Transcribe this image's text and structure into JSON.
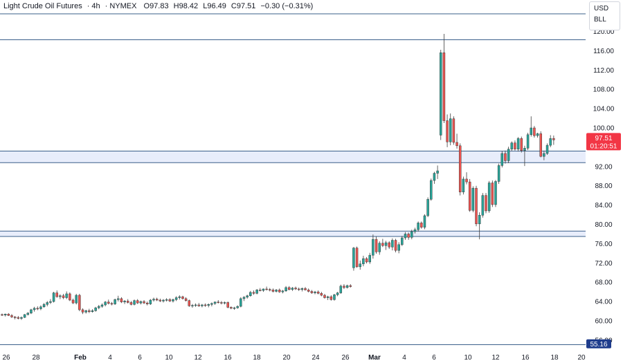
{
  "header": {
    "title": "Light Crude Oil Futures",
    "interval": "4h",
    "exchange": "NYMEX",
    "open_label": "O",
    "open": "97.83",
    "high_label": "H",
    "high": "98.42",
    "low_label": "L",
    "low": "96.49",
    "close_label": "C",
    "close": "97.51",
    "change": "−0.30 (−0.31%)"
  },
  "units": {
    "currency": "USD",
    "unit": "BLL"
  },
  "price_tags": {
    "last_price": "97.51",
    "countdown": "01:20:51",
    "line_price": "55.16"
  },
  "colors": {
    "up": "#26a69a",
    "down": "#ef5350",
    "zone_fill": "#e8edfb",
    "zone_line": "#3a5f8a",
    "last_price": "#f23645",
    "line_tag": "#1e3c8c"
  },
  "chart_data": {
    "type": "candlestick",
    "y_ticks": [
      "120.00",
      "116.00",
      "112.00",
      "108.00",
      "104.00",
      "100.00",
      "96.00",
      "92.00",
      "88.00",
      "84.00",
      "80.00",
      "76.00",
      "72.00",
      "68.00",
      "64.00",
      "60.00",
      "56.00"
    ],
    "x_ticks": [
      {
        "label": "26",
        "bold": false
      },
      {
        "label": "28",
        "bold": false
      },
      {
        "label": "Feb",
        "bold": true
      },
      {
        "label": "4",
        "bold": false
      },
      {
        "label": "6",
        "bold": false
      },
      {
        "label": "10",
        "bold": false
      },
      {
        "label": "12",
        "bold": false
      },
      {
        "label": "16",
        "bold": false
      },
      {
        "label": "18",
        "bold": false
      },
      {
        "label": "20",
        "bold": false
      },
      {
        "label": "24",
        "bold": false
      },
      {
        "label": "26",
        "bold": false
      },
      {
        "label": "Mar",
        "bold": true
      },
      {
        "label": "4",
        "bold": false
      },
      {
        "label": "6",
        "bold": false
      },
      {
        "label": "10",
        "bold": false
      },
      {
        "label": "12",
        "bold": false
      },
      {
        "label": "16",
        "bold": false
      },
      {
        "label": "18",
        "bold": false
      },
      {
        "label": "20",
        "bold": false
      }
    ],
    "ylim": [
      55,
      121
    ],
    "zones": [
      [
        92.8,
        95.2
      ],
      [
        77.5,
        78.6
      ]
    ],
    "horizontal_lines": [
      55.16,
      118.3
    ],
    "last_price": 97.51,
    "candles": [
      [
        61.3,
        61.5,
        61.0,
        61.2
      ],
      [
        61.2,
        61.5,
        60.9,
        61.4
      ],
      [
        61.4,
        61.6,
        61.0,
        61.1
      ],
      [
        61.1,
        61.4,
        60.6,
        60.8
      ],
      [
        60.8,
        61.0,
        60.3,
        60.7
      ],
      [
        60.7,
        61.0,
        60.3,
        60.5
      ],
      [
        60.5,
        60.9,
        60.2,
        60.7
      ],
      [
        60.7,
        61.4,
        60.6,
        61.3
      ],
      [
        61.3,
        61.8,
        61.1,
        61.6
      ],
      [
        61.6,
        62.5,
        61.4,
        62.3
      ],
      [
        62.3,
        62.9,
        61.9,
        62.6
      ],
      [
        62.6,
        63.0,
        62.2,
        62.5
      ],
      [
        62.5,
        63.2,
        62.2,
        62.9
      ],
      [
        62.9,
        63.7,
        62.7,
        63.4
      ],
      [
        63.4,
        64.1,
        63.0,
        63.8
      ],
      [
        63.8,
        64.5,
        63.5,
        64.0
      ],
      [
        64.0,
        66.0,
        63.8,
        65.8
      ],
      [
        65.8,
        66.3,
        64.8,
        65.0
      ],
      [
        65.0,
        65.5,
        64.5,
        65.2
      ],
      [
        65.2,
        65.6,
        64.5,
        64.8
      ],
      [
        64.8,
        66.1,
        64.5,
        65.6
      ],
      [
        65.6,
        65.9,
        64.1,
        64.3
      ],
      [
        64.3,
        64.6,
        63.5,
        63.7
      ],
      [
        63.7,
        65.6,
        63.4,
        65.3
      ],
      [
        65.3,
        65.6,
        62.0,
        62.3
      ],
      [
        62.3,
        62.6,
        61.4,
        61.8
      ],
      [
        61.8,
        62.3,
        61.5,
        62.1
      ],
      [
        62.1,
        62.5,
        61.6,
        61.9
      ],
      [
        61.9,
        62.4,
        61.7,
        62.1
      ],
      [
        62.1,
        62.9,
        61.9,
        62.7
      ],
      [
        62.7,
        63.3,
        62.4,
        63.0
      ],
      [
        63.0,
        63.6,
        62.7,
        63.3
      ],
      [
        63.3,
        64.1,
        63.0,
        63.9
      ],
      [
        63.9,
        64.4,
        63.4,
        63.6
      ],
      [
        63.6,
        63.9,
        63.2,
        63.5
      ],
      [
        63.5,
        64.6,
        63.3,
        64.4
      ],
      [
        64.4,
        65.2,
        64.0,
        64.6
      ],
      [
        64.6,
        64.9,
        63.7,
        63.9
      ],
      [
        63.9,
        64.3,
        63.5,
        64.1
      ],
      [
        64.1,
        64.5,
        63.6,
        63.8
      ],
      [
        63.8,
        64.1,
        63.2,
        63.4
      ],
      [
        63.4,
        64.4,
        63.2,
        64.2
      ],
      [
        64.2,
        64.5,
        63.5,
        63.7
      ],
      [
        63.7,
        64.2,
        63.4,
        64.0
      ],
      [
        64.0,
        64.3,
        63.5,
        63.7
      ],
      [
        63.7,
        64.0,
        63.2,
        63.5
      ],
      [
        63.5,
        64.5,
        63.3,
        64.3
      ],
      [
        64.3,
        64.8,
        64.0,
        64.5
      ],
      [
        64.5,
        64.8,
        64.1,
        64.3
      ],
      [
        64.3,
        64.6,
        63.9,
        64.1
      ],
      [
        64.1,
        64.5,
        63.8,
        64.3
      ],
      [
        64.3,
        64.7,
        64.0,
        64.4
      ],
      [
        64.4,
        64.7,
        63.9,
        64.1
      ],
      [
        64.1,
        64.6,
        63.8,
        64.4
      ],
      [
        64.4,
        65.1,
        64.1,
        64.8
      ],
      [
        64.8,
        65.3,
        64.4,
        65.0
      ],
      [
        65.0,
        65.2,
        64.4,
        64.6
      ],
      [
        64.6,
        64.9,
        64.0,
        64.2
      ],
      [
        64.2,
        64.4,
        62.9,
        63.1
      ],
      [
        63.1,
        63.5,
        62.7,
        63.2
      ],
      [
        63.2,
        63.6,
        62.9,
        63.3
      ],
      [
        63.3,
        63.7,
        62.9,
        63.1
      ],
      [
        63.1,
        63.5,
        62.8,
        63.3
      ],
      [
        63.3,
        63.6,
        62.9,
        63.2
      ],
      [
        63.2,
        63.6,
        62.8,
        63.4
      ],
      [
        63.4,
        63.8,
        63.0,
        63.6
      ],
      [
        63.6,
        64.0,
        63.3,
        63.9
      ],
      [
        63.9,
        64.3,
        63.6,
        63.8
      ],
      [
        63.8,
        64.1,
        63.4,
        63.7
      ],
      [
        63.7,
        64.0,
        63.4,
        63.8
      ],
      [
        63.8,
        64.0,
        62.6,
        62.8
      ],
      [
        62.8,
        63.0,
        62.4,
        62.6
      ],
      [
        62.6,
        62.9,
        62.3,
        62.7
      ],
      [
        62.7,
        63.2,
        62.5,
        63.0
      ],
      [
        63.0,
        64.9,
        62.8,
        64.6
      ],
      [
        64.6,
        65.1,
        64.1,
        64.9
      ],
      [
        64.9,
        65.4,
        64.6,
        65.2
      ],
      [
        65.2,
        66.2,
        65.0,
        65.9
      ],
      [
        65.9,
        66.3,
        65.4,
        65.7
      ],
      [
        65.7,
        66.6,
        65.5,
        66.4
      ],
      [
        66.4,
        66.8,
        66.1,
        66.3
      ],
      [
        66.3,
        66.7,
        66.0,
        66.6
      ],
      [
        66.6,
        67.1,
        66.3,
        66.5
      ],
      [
        66.5,
        66.8,
        66.1,
        66.4
      ],
      [
        66.4,
        66.7,
        65.9,
        66.1
      ],
      [
        66.1,
        66.6,
        65.9,
        66.4
      ],
      [
        66.4,
        66.7,
        65.8,
        66.0
      ],
      [
        66.0,
        66.4,
        65.7,
        66.2
      ],
      [
        66.2,
        67.2,
        66.0,
        66.9
      ],
      [
        66.9,
        67.2,
        66.3,
        66.5
      ],
      [
        66.5,
        67.0,
        66.2,
        66.8
      ],
      [
        66.8,
        67.1,
        66.4,
        66.6
      ],
      [
        66.6,
        66.9,
        66.2,
        66.5
      ],
      [
        66.5,
        66.9,
        66.1,
        66.7
      ],
      [
        66.7,
        67.0,
        66.3,
        66.4
      ],
      [
        66.4,
        66.7,
        65.9,
        66.1
      ],
      [
        66.1,
        66.4,
        65.6,
        65.8
      ],
      [
        65.8,
        66.2,
        65.5,
        66.0
      ],
      [
        66.0,
        66.3,
        65.5,
        65.7
      ],
      [
        65.7,
        66.0,
        65.1,
        65.3
      ],
      [
        65.3,
        65.6,
        64.6,
        64.8
      ],
      [
        64.8,
        65.2,
        64.3,
        65.0
      ],
      [
        65.0,
        65.3,
        64.2,
        64.4
      ],
      [
        64.4,
        65.6,
        64.2,
        65.4
      ],
      [
        65.4,
        66.0,
        65.1,
        65.8
      ],
      [
        65.8,
        67.5,
        65.6,
        67.2
      ],
      [
        67.2,
        67.6,
        66.6,
        66.9
      ],
      [
        66.9,
        67.5,
        66.7,
        67.3
      ],
      [
        67.3,
        67.6,
        66.9,
        67.1
      ],
      [
        71.0,
        75.3,
        70.4,
        75.1
      ],
      [
        75.1,
        75.4,
        71.0,
        71.2
      ],
      [
        71.2,
        72.5,
        70.6,
        71.8
      ],
      [
        71.8,
        73.5,
        71.3,
        72.9
      ],
      [
        72.9,
        73.2,
        71.9,
        72.2
      ],
      [
        72.2,
        74.1,
        71.8,
        73.6
      ],
      [
        73.6,
        77.9,
        72.9,
        76.9
      ],
      [
        76.9,
        77.5,
        73.9,
        74.3
      ],
      [
        74.3,
        76.5,
        73.7,
        76.1
      ],
      [
        76.1,
        77.0,
        75.3,
        75.6
      ],
      [
        75.6,
        76.6,
        74.7,
        76.2
      ],
      [
        76.2,
        76.5,
        74.9,
        75.3
      ],
      [
        75.3,
        77.1,
        74.6,
        76.7
      ],
      [
        76.7,
        77.0,
        74.2,
        74.6
      ],
      [
        74.6,
        76.3,
        74.0,
        75.8
      ],
      [
        75.8,
        77.6,
        75.5,
        77.2
      ],
      [
        77.2,
        78.4,
        76.8,
        78.0
      ],
      [
        78.0,
        78.3,
        76.8,
        77.3
      ],
      [
        77.3,
        78.9,
        76.9,
        78.5
      ],
      [
        78.5,
        79.3,
        78.1,
        78.9
      ],
      [
        78.9,
        80.6,
        78.5,
        80.3
      ],
      [
        80.3,
        80.6,
        79.1,
        79.4
      ],
      [
        79.4,
        82.1,
        79.0,
        81.8
      ],
      [
        81.8,
        85.6,
        81.5,
        85.2
      ],
      [
        85.2,
        89.5,
        84.9,
        89.1
      ],
      [
        89.1,
        90.9,
        88.4,
        90.6
      ],
      [
        90.6,
        92.2,
        89.4,
        91.1
      ],
      [
        98.5,
        116.2,
        97.5,
        115.6
      ],
      [
        115.6,
        119.5,
        101.0,
        101.5
      ],
      [
        101.5,
        102.8,
        96.0,
        97.1
      ],
      [
        97.1,
        103.0,
        96.4,
        101.9
      ],
      [
        101.9,
        102.4,
        96.5,
        97.0
      ],
      [
        97.0,
        98.8,
        95.7,
        96.3
      ],
      [
        96.3,
        96.8,
        86.0,
        86.7
      ],
      [
        86.7,
        89.9,
        86.2,
        89.4
      ],
      [
        89.4,
        90.8,
        88.3,
        88.8
      ],
      [
        88.8,
        89.4,
        82.6,
        82.9
      ],
      [
        82.9,
        87.9,
        82.5,
        87.5
      ],
      [
        87.5,
        88.0,
        79.6,
        80.1
      ],
      [
        80.1,
        82.5,
        76.9,
        81.9
      ],
      [
        81.9,
        86.5,
        81.4,
        86.0
      ],
      [
        86.0,
        86.5,
        82.3,
        82.8
      ],
      [
        82.8,
        89.0,
        82.4,
        88.6
      ],
      [
        88.6,
        89.1,
        83.6,
        84.1
      ],
      [
        84.1,
        89.2,
        83.6,
        88.9
      ],
      [
        88.9,
        92.6,
        88.4,
        92.2
      ],
      [
        92.2,
        95.2,
        91.8,
        94.7
      ],
      [
        94.7,
        95.3,
        92.6,
        93.2
      ],
      [
        93.2,
        96.1,
        92.7,
        95.6
      ],
      [
        95.6,
        97.2,
        95.2,
        96.9
      ],
      [
        96.9,
        97.4,
        95.3,
        95.6
      ],
      [
        95.6,
        98.1,
        95.1,
        97.8
      ],
      [
        97.8,
        98.2,
        94.9,
        95.3
      ],
      [
        95.3,
        96.3,
        92.1,
        95.8
      ],
      [
        95.8,
        99.0,
        95.4,
        98.6
      ],
      [
        98.6,
        102.4,
        98.2,
        100.0
      ],
      [
        100.0,
        100.4,
        98.0,
        98.4
      ],
      [
        98.4,
        99.0,
        98.0,
        98.8
      ],
      [
        98.8,
        99.3,
        93.9,
        94.1
      ],
      [
        94.1,
        95.3,
        93.3,
        94.7
      ],
      [
        94.7,
        96.8,
        94.4,
        96.4
      ],
      [
        96.4,
        98.5,
        96.0,
        97.8
      ],
      [
        97.83,
        98.42,
        96.49,
        97.51
      ]
    ]
  }
}
